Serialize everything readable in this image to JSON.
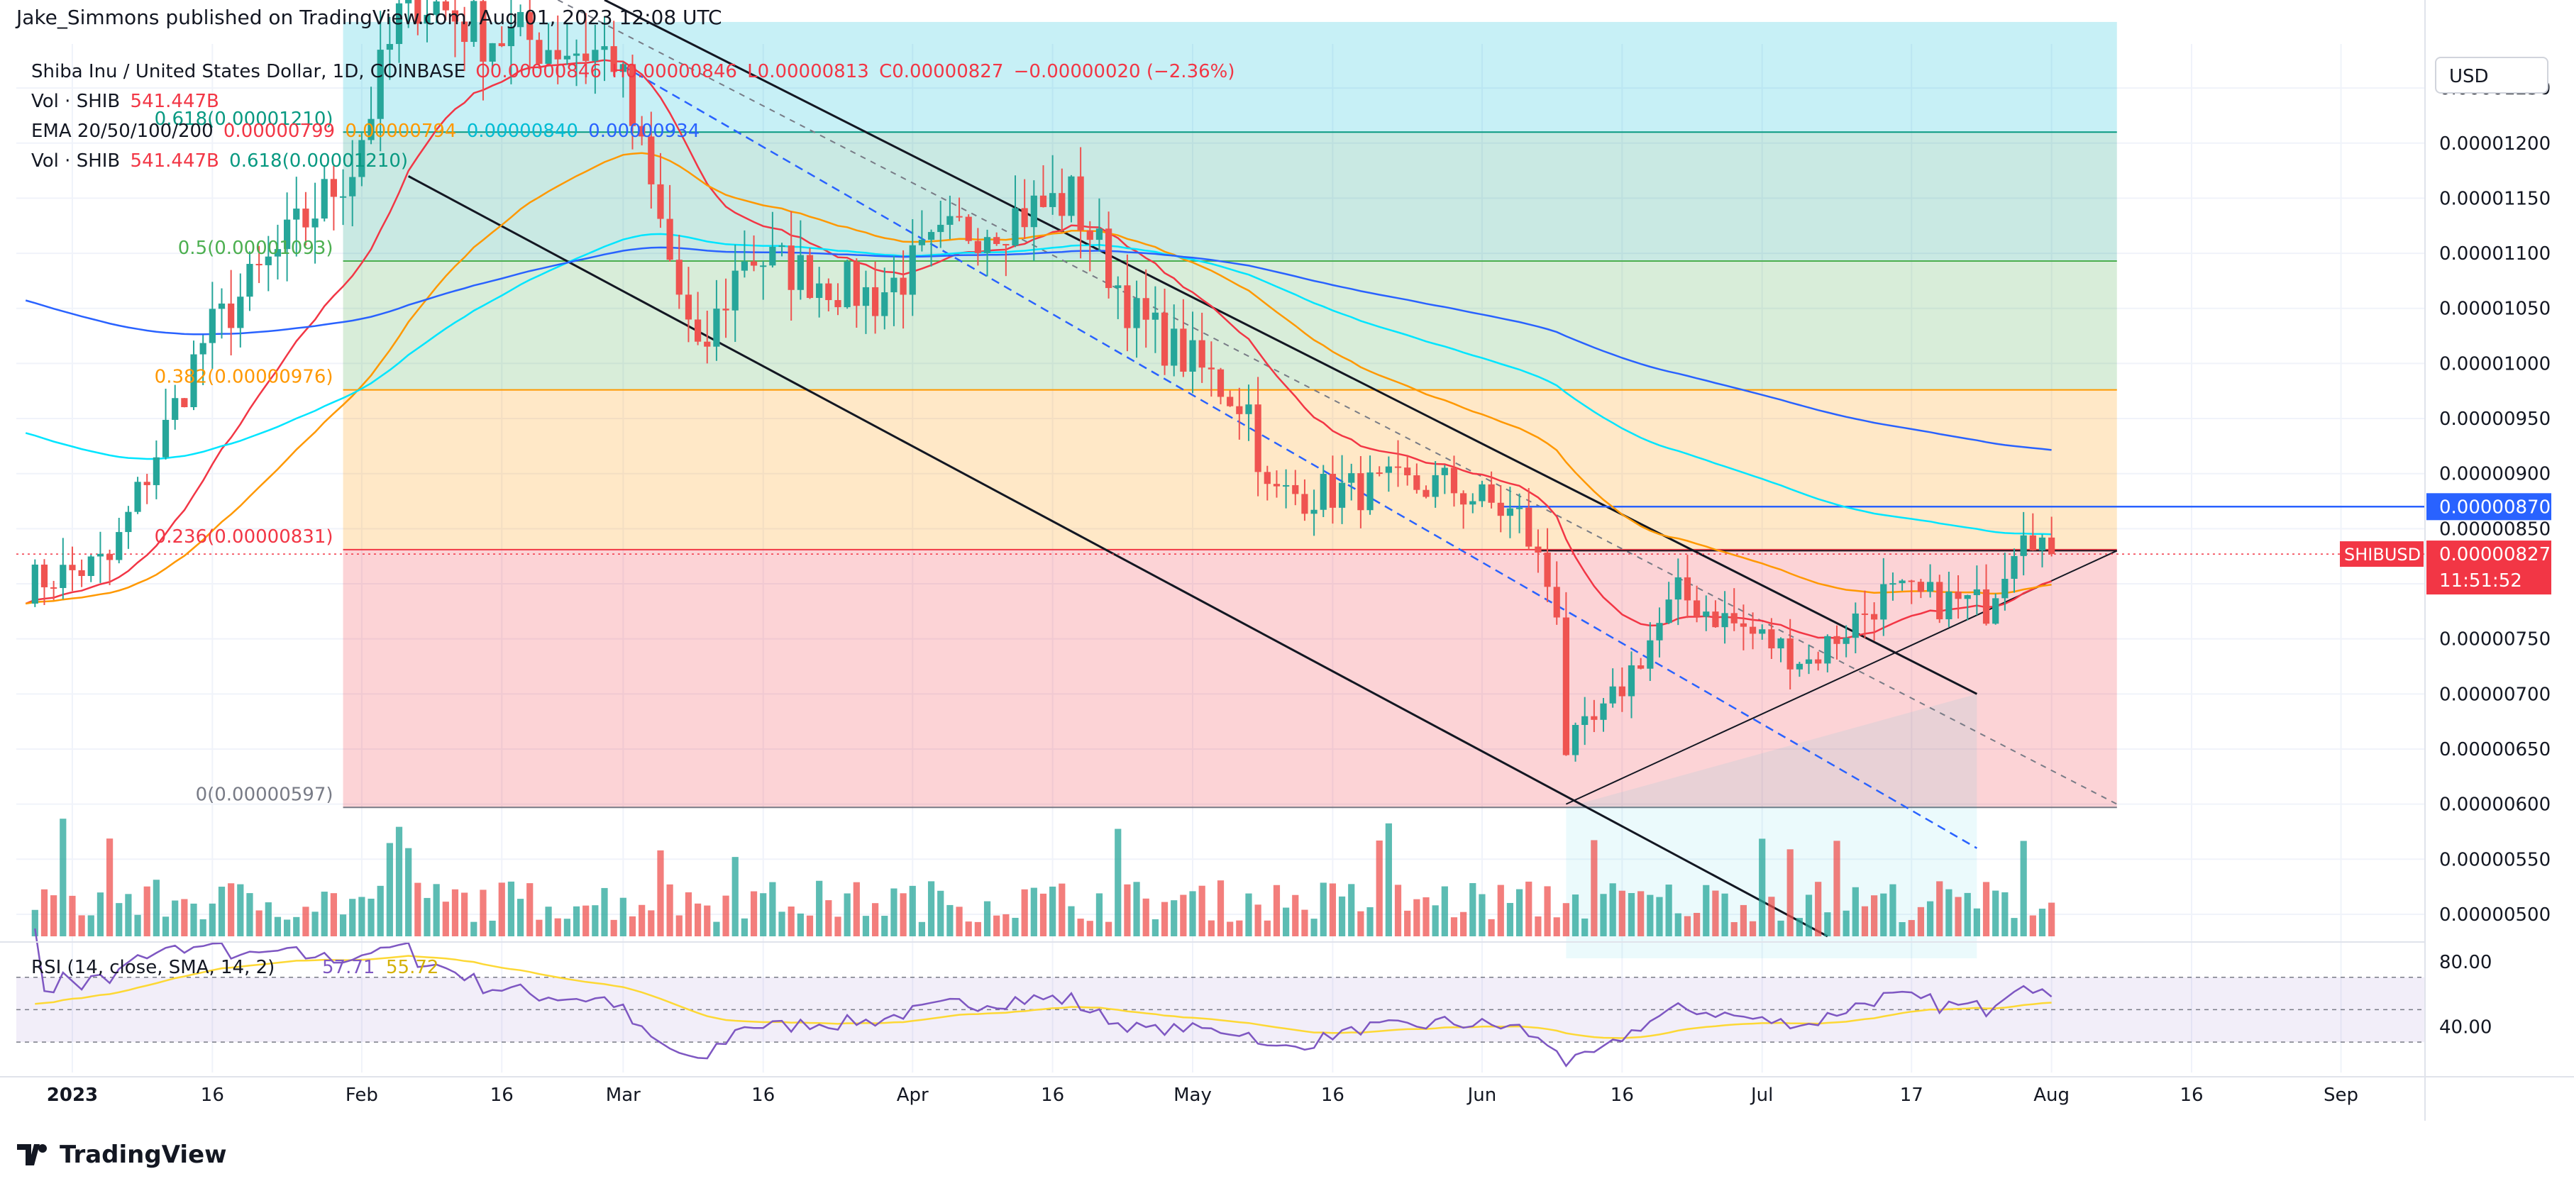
{
  "header": {
    "published_line": "Jake_Simmons published on TradingView.com, Aug 01, 2023 12:08 UTC"
  },
  "legend": {
    "symbol_line": {
      "name": "Shiba Inu / United States Dollar, 1D, COINBASE",
      "o": "O0.00000846",
      "h": "H0.00000846",
      "l": "L0.00000813",
      "c": "C0.00000827",
      "change": "−0.00000020 (−2.36%)"
    },
    "vol1_label": "Vol · SHIB",
    "vol1_value": "541.447B",
    "ema_label": "EMA 20/50/100/200",
    "ema20": "0.00000799",
    "ema50": "0.00000794",
    "ema100": "0.00000840",
    "ema200": "0.00000934",
    "vol2_label": "Vol · SHIB",
    "vol2_value": "541.447B",
    "fib_0618": "0.618(0.00001210)"
  },
  "currency_button": "USD",
  "footer_logo": "TradingView",
  "price_axis": {
    "ticks": [
      "0.00001250",
      "0.00001200",
      "0.00001150",
      "0.00001100",
      "0.00001050",
      "0.00001000",
      "0.00000950",
      "0.00000900",
      "0.00000850",
      "0.00000800",
      "0.00000750",
      "0.00000700",
      "0.00000650",
      "0.00000600",
      "0.00000550",
      "0.00000500"
    ],
    "label_blue": "0.00000870",
    "label_last": "0.00000827",
    "label_symbol": "SHIBUSD",
    "label_countdown": "11:51:52"
  },
  "rsi": {
    "label": "RSI (14, close, SMA, 14, 2)",
    "value": "57.71",
    "sma": "55.72",
    "ticks": [
      "80.00",
      "40.00"
    ]
  },
  "time_axis": {
    "labels": [
      "2023",
      "16",
      "Feb",
      "16",
      "Mar",
      "16",
      "Apr",
      "16",
      "May",
      "16",
      "Jun",
      "16",
      "Jul",
      "17",
      "Aug",
      "16",
      "Sep"
    ]
  },
  "colors": {
    "up": "#26a69a",
    "down": "#ef5350",
    "ema20": "#f23645",
    "ema50": "#ff9800",
    "ema100": "#00e5ff",
    "ema200": "#2962ff",
    "rsi": "#7e57c2",
    "rsi_sma": "#fdd835"
  },
  "chart_data": {
    "type": "candlestick",
    "title": "Shiba Inu / United States Dollar, 1D, COINBASE",
    "ylim": [
      4.8e-06,
      1.29e-05
    ],
    "fib_levels": [
      {
        "ratio": "0",
        "price": 5.97e-06,
        "label": "0(0.00000597)"
      },
      {
        "ratio": "0.236",
        "price": 8.31e-06,
        "label": "0.236(0.00000831)"
      },
      {
        "ratio": "0.382",
        "price": 9.76e-06,
        "label": "0.382(0.00000976)"
      },
      {
        "ratio": "0.5",
        "price": 1.093e-05,
        "label": "0.5(0.00001093)"
      },
      {
        "ratio": "0.618",
        "price": 1.21e-05,
        "label": "0.618(0.00001210)"
      }
    ],
    "horizontal_line": 8.7e-06,
    "last_price": 8.27e-06,
    "anchors": [
      {
        "date": "2022-12-27",
        "close": 8e-06
      },
      {
        "date": "2023-01-05",
        "close": 8.2e-06
      },
      {
        "date": "2023-01-15",
        "close": 1.02e-05
      },
      {
        "date": "2023-01-31",
        "close": 1.18e-05
      },
      {
        "date": "2023-02-06",
        "close": 1.34e-05
      },
      {
        "date": "2023-02-14",
        "close": 1.3e-05
      },
      {
        "date": "2023-02-28",
        "close": 1.28e-05
      },
      {
        "date": "2023-03-09",
        "close": 1e-05
      },
      {
        "date": "2023-03-14",
        "close": 1.1e-05
      },
      {
        "date": "2023-03-28",
        "close": 1.06e-05
      },
      {
        "date": "2023-04-06",
        "close": 1.12e-05
      },
      {
        "date": "2023-04-18",
        "close": 1.15e-05
      },
      {
        "date": "2023-04-25",
        "close": 1.04e-05
      },
      {
        "date": "2023-05-07",
        "close": 9.6e-06
      },
      {
        "date": "2023-05-09",
        "close": 8.8e-06
      },
      {
        "date": "2023-05-28",
        "close": 8.9e-06
      },
      {
        "date": "2023-06-05",
        "close": 8.6e-06
      },
      {
        "date": "2023-06-09",
        "close": 7.8e-06
      },
      {
        "date": "2023-06-10",
        "close": 6.5e-06
      },
      {
        "date": "2023-06-14",
        "close": 6.8e-06
      },
      {
        "date": "2023-06-22",
        "close": 7.9e-06
      },
      {
        "date": "2023-07-01",
        "close": 7.5e-06
      },
      {
        "date": "2023-07-06",
        "close": 7.3e-06
      },
      {
        "date": "2023-07-14",
        "close": 7.9e-06
      },
      {
        "date": "2023-07-25",
        "close": 7.8e-06
      },
      {
        "date": "2023-07-29",
        "close": 8.6e-06
      },
      {
        "date": "2023-08-01",
        "close": 8.27e-06
      }
    ]
  }
}
